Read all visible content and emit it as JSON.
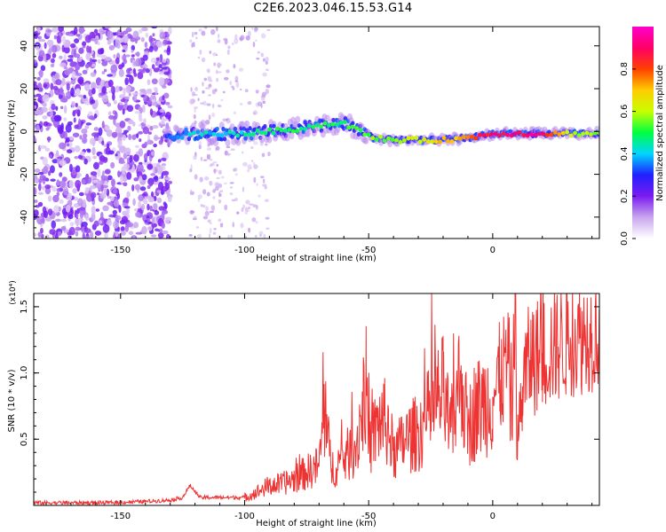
{
  "title": "C2E6.2023.046.15.53.G14",
  "chart_data": [
    {
      "type": "heatmap",
      "xlabel": "Height of straight line (km)",
      "ylabel": "Frequency (Hz)",
      "xlim": [
        -185,
        43
      ],
      "ylim": [
        -50,
        49
      ],
      "x_ticks": [
        -150,
        -100,
        -50,
        0
      ],
      "y_ticks": [
        -40,
        -20,
        0,
        20,
        40
      ],
      "colorbar": {
        "label": "Normalized spectral amplitude",
        "range": [
          0,
          1
        ],
        "ticks": [
          0.0,
          0.2,
          0.4,
          0.6,
          0.8
        ],
        "colormap": [
          "#ffffff",
          "#c9a6ee",
          "#7a1bf0",
          "#2020ff",
          "#00d5ff",
          "#00ff40",
          "#c8ff00",
          "#ffcc00",
          "#ff4000",
          "#ff0066",
          "#ff00cc"
        ]
      },
      "ridge": {
        "x": [
          -130,
          -120,
          -110,
          -100,
          -90,
          -80,
          -70,
          -60,
          -52,
          -48,
          -40,
          -30,
          -20,
          -10,
          -5,
          0,
          10,
          20,
          30,
          40
        ],
        "y": [
          -3,
          -1,
          -1,
          -1,
          0,
          1,
          3,
          4,
          -1,
          -3,
          -4,
          -4,
          -4,
          -3,
          -2,
          -1,
          -1,
          -1,
          -1,
          -1
        ],
        "amplitude": [
          0.35,
          0.4,
          0.42,
          0.45,
          0.5,
          0.5,
          0.48,
          0.5,
          0.55,
          0.55,
          0.55,
          0.62,
          0.7,
          0.72,
          0.85,
          0.88,
          0.9,
          0.92,
          0.6,
          0.55
        ]
      }
    },
    {
      "type": "line",
      "xlabel": "Height of straight line (km)",
      "ylabel": "SNR (10 * v/v)",
      "y_multiplier": "(x10⁴)",
      "xlim": [
        -185,
        43
      ],
      "ylim": [
        0,
        1.6
      ],
      "x_ticks": [
        -150,
        -100,
        -50,
        0
      ],
      "y_ticks": [
        0.5,
        1.0,
        1.5
      ],
      "y_tick_labels": [
        "0.5",
        "1.0",
        "1.5"
      ],
      "color": "#ee3333",
      "series": [
        {
          "x": [
            -185,
            -170,
            -155,
            -140,
            -130,
            -125,
            -122,
            -118,
            -110,
            -100,
            -95,
            -90,
            -85,
            -80,
            -75,
            -70,
            -68,
            -65,
            -60,
            -55,
            -51,
            -50,
            -45,
            -42,
            -40,
            -35,
            -30,
            -25,
            -20,
            -17,
            -15,
            -13,
            -10,
            -8,
            -5,
            -2,
            0,
            3,
            6,
            8,
            9,
            10,
            12,
            15,
            20,
            25,
            30,
            35,
            40,
            43
          ],
          "y": [
            0.02,
            0.02,
            0.02,
            0.03,
            0.04,
            0.06,
            0.15,
            0.06,
            0.06,
            0.06,
            0.1,
            0.15,
            0.16,
            0.2,
            0.25,
            0.3,
            0.69,
            0.28,
            0.35,
            0.45,
            0.92,
            0.45,
            0.65,
            0.6,
            0.38,
            0.5,
            0.55,
            0.7,
            0.85,
            0.55,
            0.72,
            1.02,
            0.55,
            0.7,
            0.75,
            0.8,
            0.82,
            0.95,
            1.1,
            0.7,
            1.6,
            0.42,
            0.9,
            1.1,
            1.15,
            1.2,
            1.25,
            1.27,
            1.3,
            1.32
          ]
        }
      ]
    }
  ]
}
